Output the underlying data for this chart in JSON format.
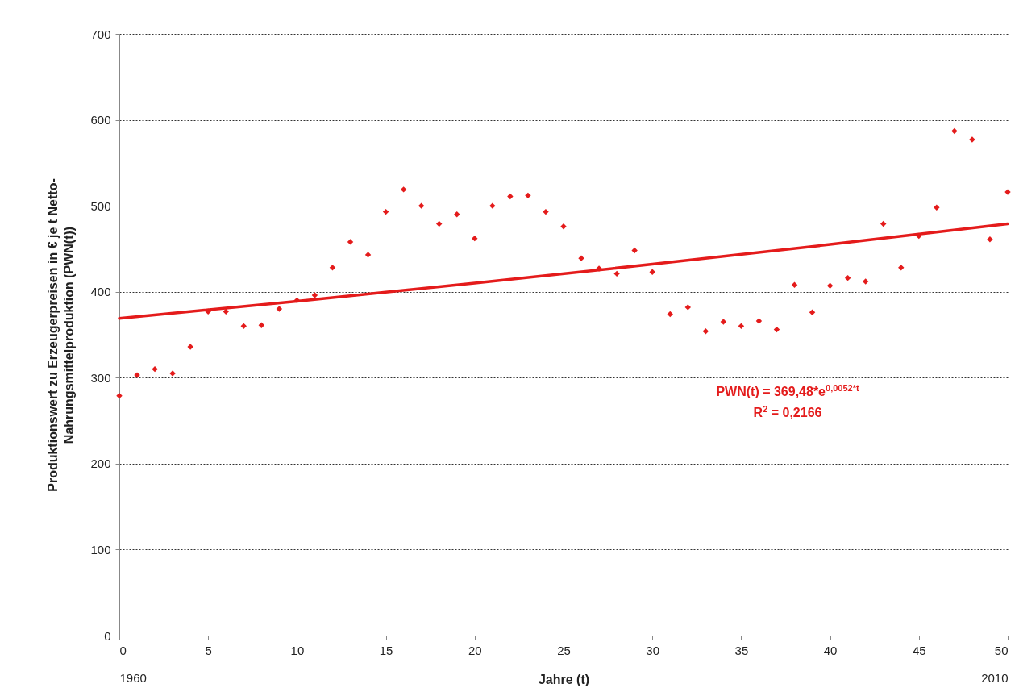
{
  "chart_data": {
    "type": "scatter",
    "xlabel": "Jahre (t)",
    "ylabel": "Produktionswert zu Erzeugerpreisen in € je t Netto-\nNahrungsmittelproduktion (PWN(t))",
    "x": [
      0,
      1,
      2,
      3,
      4,
      5,
      6,
      7,
      8,
      9,
      10,
      11,
      12,
      13,
      14,
      15,
      16,
      17,
      18,
      19,
      20,
      21,
      22,
      23,
      24,
      25,
      26,
      27,
      28,
      29,
      30,
      31,
      32,
      33,
      34,
      35,
      36,
      37,
      38,
      39,
      40,
      41,
      42,
      43,
      44,
      45,
      46,
      47,
      48,
      49,
      50
    ],
    "series": [
      {
        "color": "#e41b1b",
        "marker": "diamond",
        "values": [
          279,
          303,
          310,
          305,
          336,
          377,
          377,
          360,
          361,
          380,
          390,
          396,
          428,
          458,
          443,
          493,
          519,
          500,
          479,
          490,
          462,
          500,
          511,
          512,
          493,
          476,
          439,
          427,
          421,
          448,
          423,
          374,
          382,
          354,
          365,
          360,
          366,
          356,
          408,
          376,
          407,
          416,
          412,
          479,
          428,
          465,
          498,
          587,
          577,
          461,
          516
        ]
      },
      {
        "type": "line",
        "color": "#e41b1b",
        "line_style": "solid",
        "x": [
          0,
          10,
          20,
          30,
          40,
          50
        ],
        "values": [
          369,
          389,
          410,
          432,
          455,
          479
        ]
      }
    ],
    "xlim": [
      0,
      50
    ],
    "xticks": [
      {
        "value": 0,
        "label": "0\n1960"
      },
      5,
      10,
      15,
      20,
      25,
      30,
      35,
      40,
      45,
      {
        "value": 50,
        "label": "50\n2010"
      }
    ],
    "ylim": [
      0,
      700
    ],
    "yticks": [
      0,
      100,
      200,
      300,
      400,
      500,
      600,
      700
    ],
    "grid": "y",
    "annotations": [
      "PWN(t) = 369,48*e$^{0,0052*t}$",
      "R$^{2}$ = 0,2166"
    ]
  }
}
